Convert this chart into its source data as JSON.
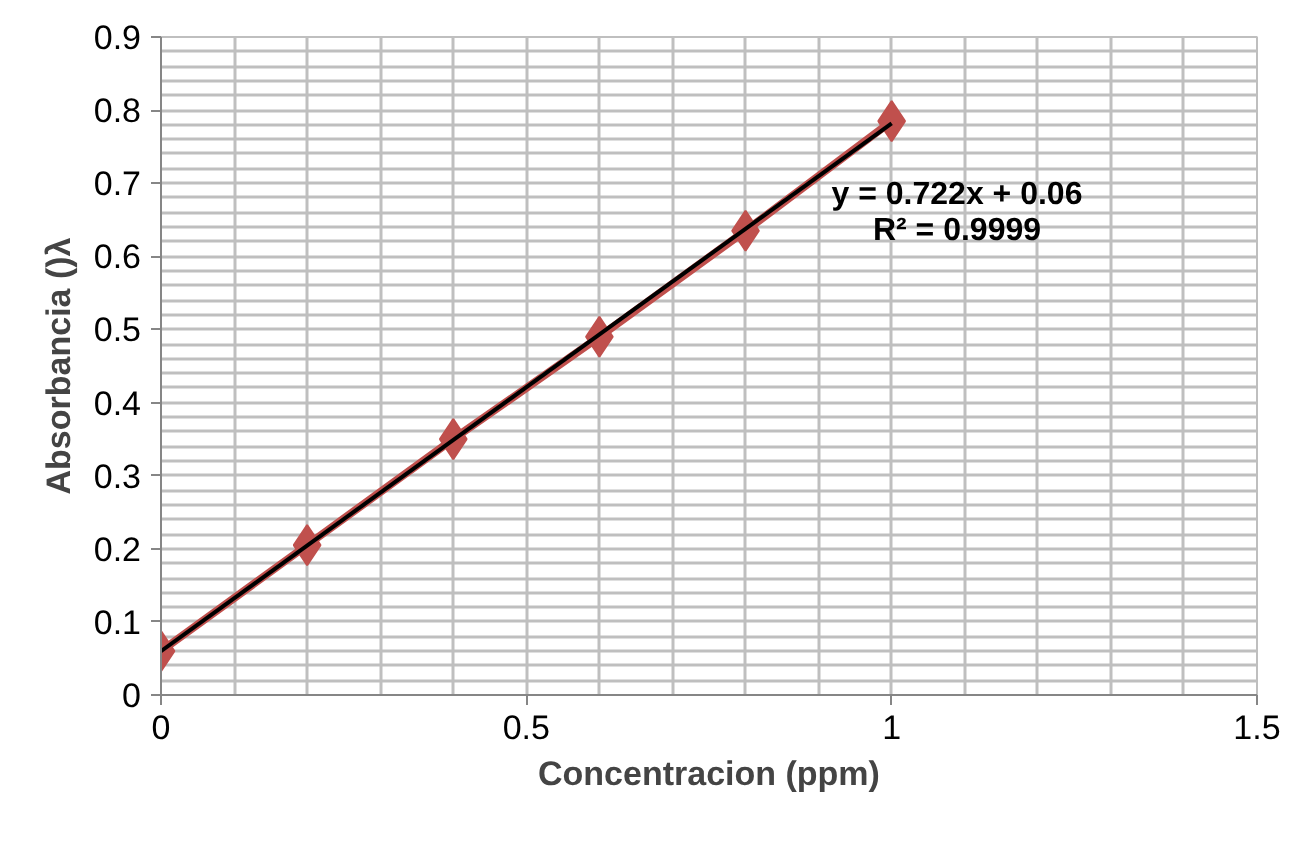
{
  "chart_data": {
    "type": "line",
    "xlabel": "Concentracion (ppm)",
    "ylabel": "Absorbancia ()λ",
    "xlim": [
      0,
      1.5
    ],
    "xticks": [
      0,
      0.5,
      1,
      1.5
    ],
    "ylim": [
      0,
      0.9
    ],
    "yticks": [
      0,
      0.1,
      0.2,
      0.3,
      0.4,
      0.5,
      0.6,
      0.7,
      0.8,
      0.9
    ],
    "grid": true,
    "series": [
      {
        "color": "#c0504d",
        "marker": "diamond",
        "x": [
          0,
          0.2,
          0.4,
          0.6,
          0.8,
          1
        ],
        "values": [
          0.06,
          0.205,
          0.35,
          0.49,
          0.635,
          0.785
        ]
      },
      {
        "color": "#000000",
        "marker": "none",
        "x": [
          0,
          1
        ],
        "values": [
          0.06,
          0.782
        ]
      }
    ],
    "annotations": [
      "y = 0.722x + 0.06",
      "R² = 0.9999"
    ]
  }
}
